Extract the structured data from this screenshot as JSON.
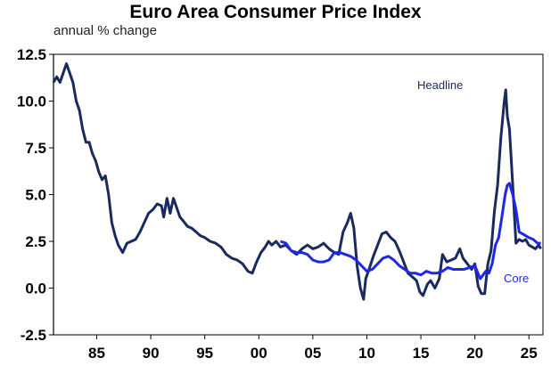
{
  "chart_data": {
    "type": "line",
    "title": "Euro Area Consumer Price Index",
    "subtitle": "annual % change",
    "xlabel": "",
    "ylabel": "",
    "xlim": [
      1981.0,
      2026.3
    ],
    "ylim": [
      -2.5,
      12.5
    ],
    "x_ticks": [
      1985,
      1990,
      1995,
      2000,
      2005,
      2010,
      2015,
      2020,
      2025
    ],
    "x_tick_labels": [
      "85",
      "90",
      "95",
      "00",
      "05",
      "10",
      "15",
      "20",
      "25"
    ],
    "y_ticks": [
      -2.5,
      0,
      2.5,
      5,
      7.5,
      10,
      12.5
    ],
    "y_tick_labels": [
      "-2.5",
      "0.0",
      "2.5",
      "5.0",
      "7.5",
      "10.0",
      "12.5"
    ],
    "grid": false,
    "series": [
      {
        "name": "Headline",
        "color": "#1a2a5e",
        "x": [
          1981.0,
          1981.3,
          1981.6,
          1981.9,
          1982.2,
          1982.5,
          1982.8,
          1983.1,
          1983.4,
          1983.7,
          1984.0,
          1984.3,
          1984.6,
          1984.9,
          1985.2,
          1985.5,
          1985.8,
          1986.1,
          1986.4,
          1986.7,
          1987.0,
          1987.4,
          1987.8,
          1988.2,
          1988.6,
          1989.0,
          1989.4,
          1989.8,
          1990.2,
          1990.6,
          1991.0,
          1991.2,
          1991.5,
          1991.8,
          1992.1,
          1992.4,
          1992.7,
          1993.0,
          1993.4,
          1993.8,
          1994.2,
          1994.6,
          1995.0,
          1995.5,
          1996.0,
          1996.5,
          1997.0,
          1997.5,
          1998.0,
          1998.5,
          1999.0,
          1999.4,
          1999.8,
          2000.2,
          2000.6,
          2000.9,
          2001.2,
          2001.6,
          2002.0,
          2002.5,
          2003.0,
          2003.5,
          2004.0,
          2004.5,
          2005.0,
          2005.5,
          2006.0,
          2006.5,
          2007.0,
          2007.4,
          2007.8,
          2008.2,
          2008.5,
          2008.8,
          2009.1,
          2009.4,
          2009.7,
          2009.9,
          2010.2,
          2010.6,
          2011.0,
          2011.4,
          2011.8,
          2012.2,
          2012.6,
          2013.0,
          2013.4,
          2013.8,
          2014.2,
          2014.6,
          2014.9,
          2015.2,
          2015.6,
          2015.9,
          2016.3,
          2016.7,
          2017.0,
          2017.4,
          2017.8,
          2018.2,
          2018.6,
          2018.9,
          2019.3,
          2019.7,
          2020.0,
          2020.3,
          2020.6,
          2020.9,
          2021.2,
          2021.5,
          2021.8,
          2022.1,
          2022.4,
          2022.7,
          2022.85,
          2023.0,
          2023.2,
          2023.5,
          2023.8,
          2024.1,
          2024.4,
          2024.7,
          2025.0,
          2025.3,
          2025.6,
          2025.9,
          2026.1
        ],
        "values": [
          11.0,
          11.3,
          11.0,
          11.5,
          12.0,
          11.5,
          11.0,
          10.0,
          9.5,
          8.5,
          7.8,
          7.8,
          7.2,
          6.8,
          6.2,
          5.8,
          6.0,
          5.0,
          3.5,
          2.8,
          2.3,
          1.9,
          2.4,
          2.5,
          2.6,
          3.0,
          3.5,
          4.0,
          4.2,
          4.5,
          4.4,
          3.8,
          4.8,
          4.0,
          4.8,
          4.3,
          3.8,
          3.6,
          3.3,
          3.2,
          3.0,
          2.8,
          2.7,
          2.5,
          2.4,
          2.2,
          1.8,
          1.6,
          1.5,
          1.3,
          0.9,
          0.8,
          1.4,
          1.9,
          2.2,
          2.5,
          2.3,
          2.5,
          2.2,
          2.3,
          2.0,
          1.8,
          2.1,
          2.3,
          2.1,
          2.2,
          2.4,
          2.1,
          1.9,
          1.8,
          3.0,
          3.5,
          4.0,
          3.2,
          1.2,
          0.0,
          -0.6,
          0.5,
          1.0,
          1.7,
          2.3,
          2.9,
          3.0,
          2.7,
          2.5,
          2.0,
          1.4,
          0.8,
          0.6,
          0.4,
          -0.2,
          -0.4,
          0.2,
          0.4,
          0.0,
          0.5,
          1.8,
          1.4,
          1.5,
          1.6,
          2.1,
          1.6,
          1.3,
          1.0,
          1.3,
          0.1,
          -0.3,
          -0.3,
          1.3,
          2.0,
          4.1,
          5.5,
          8.0,
          9.9,
          10.6,
          9.2,
          8.5,
          5.5,
          2.4,
          2.6,
          2.5,
          2.6,
          2.3,
          2.2,
          2.1,
          2.3,
          2.1
        ]
      },
      {
        "name": "Core",
        "color": "#1f27e8",
        "x": [
          2002.0,
          2002.5,
          2003.0,
          2003.5,
          2004.0,
          2004.5,
          2005.0,
          2005.5,
          2006.0,
          2006.5,
          2007.0,
          2007.5,
          2008.0,
          2008.5,
          2009.0,
          2009.5,
          2010.0,
          2010.5,
          2011.0,
          2011.5,
          2012.0,
          2012.5,
          2013.0,
          2013.5,
          2014.0,
          2014.5,
          2015.0,
          2015.5,
          2016.0,
          2016.5,
          2017.0,
          2017.5,
          2018.0,
          2018.5,
          2019.0,
          2019.5,
          2020.0,
          2020.5,
          2021.0,
          2021.3,
          2021.6,
          2021.9,
          2022.2,
          2022.5,
          2022.8,
          2023.0,
          2023.2,
          2023.5,
          2023.8,
          2024.1,
          2024.4,
          2024.7,
          2025.0,
          2025.4,
          2025.8,
          2026.1
        ],
        "values": [
          2.5,
          2.4,
          2.0,
          1.9,
          1.9,
          1.8,
          1.5,
          1.4,
          1.4,
          1.5,
          1.9,
          1.9,
          1.8,
          1.7,
          1.5,
          1.2,
          0.9,
          1.0,
          1.3,
          1.6,
          1.7,
          1.5,
          1.2,
          1.0,
          0.8,
          0.8,
          0.7,
          0.9,
          0.8,
          0.8,
          0.9,
          1.1,
          1.0,
          1.0,
          1.0,
          1.1,
          1.2,
          0.5,
          0.9,
          0.8,
          1.3,
          2.3,
          2.7,
          3.8,
          5.0,
          5.5,
          5.6,
          5.0,
          4.2,
          3.0,
          2.9,
          2.8,
          2.7,
          2.6,
          2.4,
          2.4
        ]
      }
    ],
    "annotations": [
      {
        "text": "Headline",
        "series": "Headline"
      },
      {
        "text": "Core",
        "series": "Core"
      }
    ]
  }
}
